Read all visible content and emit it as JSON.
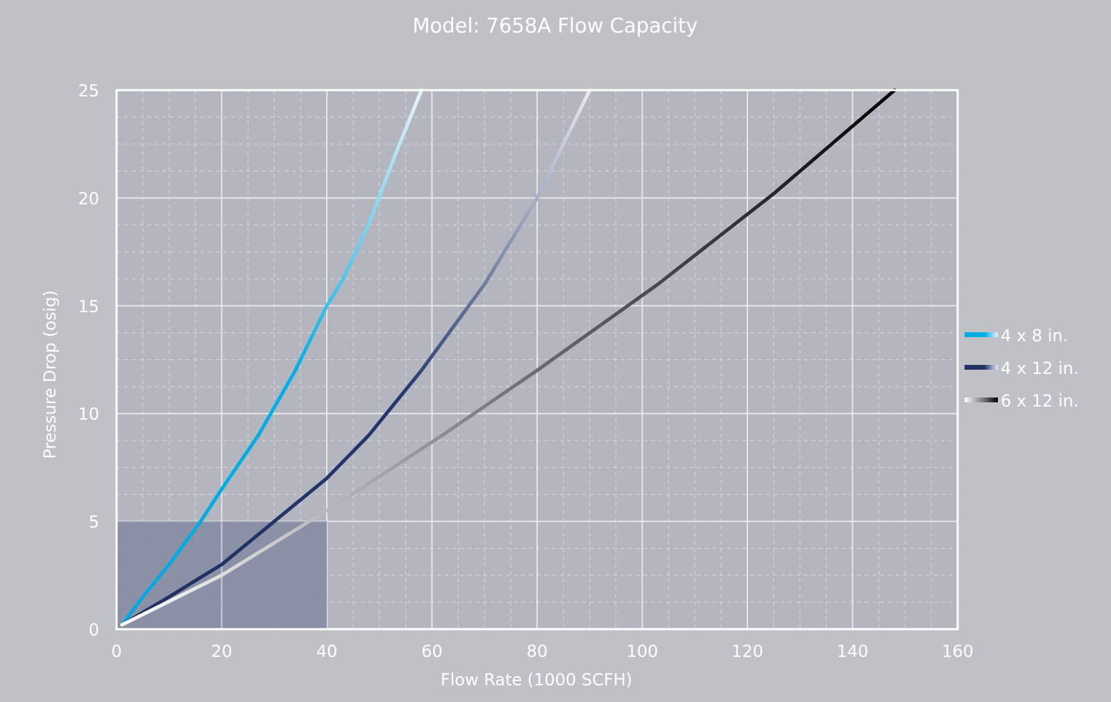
{
  "chart_data": {
    "type": "line",
    "title": "Model: 7658A Flow Capacity",
    "xlabel": "Flow Rate (1000 SCFH)",
    "ylabel": "Pressure Drop (osig)",
    "xlim": [
      0,
      160
    ],
    "ylim": [
      0,
      25
    ],
    "xticks": [
      "0",
      "20",
      "40",
      "60",
      "80",
      "100",
      "120",
      "140",
      "160"
    ],
    "yticks": [
      "0",
      "5",
      "10",
      "15",
      "20",
      "25"
    ],
    "grid": true,
    "legend_position": "right",
    "highlight_region": {
      "x": [
        0,
        40
      ],
      "y": [
        0,
        5
      ],
      "color": "#828ba2"
    },
    "series": [
      {
        "name": "4 x 8 in.",
        "colors": [
          "#00a9e0",
          "#00b0e6",
          "#e6f3fa"
        ],
        "x": [
          1,
          5,
          10,
          16,
          20,
          27,
          34,
          40,
          43,
          48,
          53,
          58
        ],
        "y": [
          0.2,
          1.5,
          3,
          5,
          6.5,
          9,
          12,
          15,
          16.2,
          18.8,
          22,
          25
        ]
      },
      {
        "name": "4 x 12 in.",
        "colors": [
          "#1f3060",
          "#23376c",
          "#e8e9f0"
        ],
        "x": [
          1,
          10,
          20,
          30,
          40,
          48,
          58,
          70,
          80,
          85,
          90
        ],
        "y": [
          0.2,
          1.5,
          3,
          5,
          7,
          9,
          12,
          16,
          20,
          22.5,
          25
        ]
      },
      {
        "name": "6 x 12 in.",
        "colors": [
          "#ffffff",
          "#6e6f73",
          "#000000"
        ],
        "x": [
          1,
          20,
          40,
          62,
          80,
          103,
          125,
          148
        ],
        "y": [
          0.2,
          2.5,
          5.5,
          9,
          12,
          16,
          20.2,
          25
        ]
      }
    ]
  }
}
